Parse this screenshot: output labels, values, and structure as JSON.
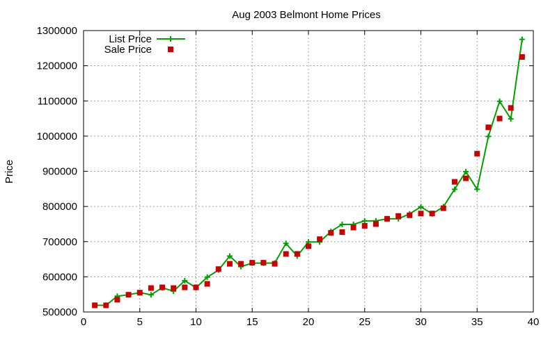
{
  "chart_data": {
    "type": "line",
    "title": "Aug 2003 Belmont Home Prices",
    "xlabel": "",
    "ylabel": "Price",
    "xlim": [
      0,
      40
    ],
    "ylim": [
      500000,
      1300000
    ],
    "xticks": [
      0,
      5,
      10,
      15,
      20,
      25,
      30,
      35,
      40
    ],
    "yticks": [
      500000,
      600000,
      700000,
      800000,
      900000,
      1000000,
      1100000,
      1200000,
      1300000
    ],
    "grid": true,
    "legend_position": "top-left",
    "x": [
      1,
      2,
      3,
      4,
      5,
      6,
      7,
      8,
      9,
      10,
      11,
      12,
      13,
      14,
      15,
      16,
      17,
      18,
      19,
      20,
      21,
      22,
      23,
      24,
      25,
      26,
      27,
      28,
      29,
      30,
      31,
      32,
      33,
      34,
      35,
      36,
      37,
      38,
      39
    ],
    "series": [
      {
        "name": "List Price",
        "style": "line-with-plus",
        "color": "#00a000",
        "values": [
          519000,
          519000,
          545000,
          549000,
          555000,
          549000,
          569000,
          559000,
          589000,
          569000,
          599000,
          619000,
          659000,
          629000,
          639000,
          639000,
          639000,
          695000,
          659000,
          699000,
          699000,
          729000,
          749000,
          749000,
          759000,
          759000,
          765000,
          765000,
          779000,
          799000,
          779000,
          799000,
          849000,
          899000,
          849000,
          999000,
          1099000,
          1049000,
          1275000
        ]
      },
      {
        "name": "Sale Price",
        "style": "square-points",
        "color": "#cc0000",
        "values": [
          519000,
          519000,
          535000,
          549000,
          555000,
          568000,
          570000,
          568000,
          570000,
          570000,
          580000,
          622000,
          637000,
          637000,
          640000,
          640000,
          637000,
          665000,
          665000,
          687000,
          707000,
          725000,
          727000,
          740000,
          745000,
          750000,
          765000,
          773000,
          775000,
          780000,
          780000,
          795000,
          870000,
          880000,
          950000,
          1025000,
          1050000,
          1080000,
          1225000
        ]
      }
    ]
  }
}
